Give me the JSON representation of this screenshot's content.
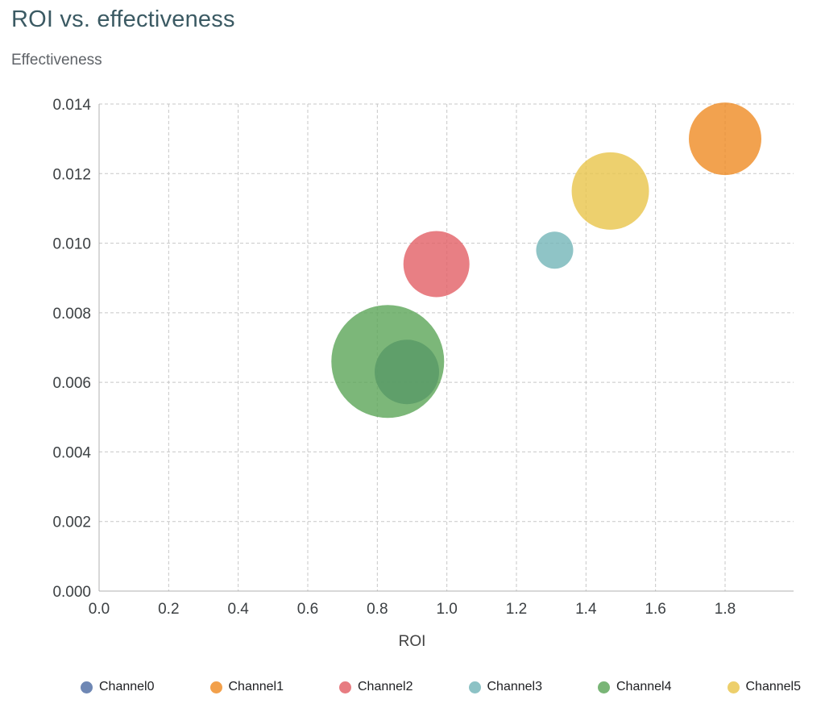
{
  "page": {
    "title": "ROI vs. effectiveness"
  },
  "chart_data": {
    "type": "scatter",
    "variant": "bubble",
    "title": "ROI vs. effectiveness",
    "xlabel": "ROI",
    "ylabel": "Effectiveness",
    "xlim": [
      0,
      1.8
    ],
    "ylim": [
      0,
      0.014
    ],
    "x_ticks": [
      "0.0",
      "0.2",
      "0.4",
      "0.6",
      "0.8",
      "1.0",
      "1.2",
      "1.4",
      "1.6",
      "1.8"
    ],
    "y_ticks": [
      "0.000",
      "0.002",
      "0.004",
      "0.006",
      "0.008",
      "0.010",
      "0.012",
      "0.014"
    ],
    "grid": "dashed",
    "legend_position": "bottom",
    "series": [
      {
        "name": "Channel0",
        "color": "#4E6CA3",
        "x": 0.885,
        "y": 0.0063,
        "r": 40
      },
      {
        "name": "Channel1",
        "color": "#EF8B23",
        "x": 1.8,
        "y": 0.013,
        "r": 45
      },
      {
        "name": "Channel2",
        "color": "#E25F65",
        "x": 0.97,
        "y": 0.0094,
        "r": 41
      },
      {
        "name": "Channel3",
        "color": "#73B5B8",
        "x": 1.31,
        "y": 0.0098,
        "r": 23
      },
      {
        "name": "Channel4",
        "color": "#5BA558",
        "x": 0.83,
        "y": 0.0066,
        "r": 70
      },
      {
        "name": "Channel5",
        "color": "#E9C44A",
        "x": 1.47,
        "y": 0.0115,
        "r": 48
      }
    ],
    "style": {
      "bubble_opacity": 0.8,
      "grid_color": "#c7c7c7",
      "axis_color": "#b0b0b0",
      "title_color": "#3b5a63"
    }
  }
}
